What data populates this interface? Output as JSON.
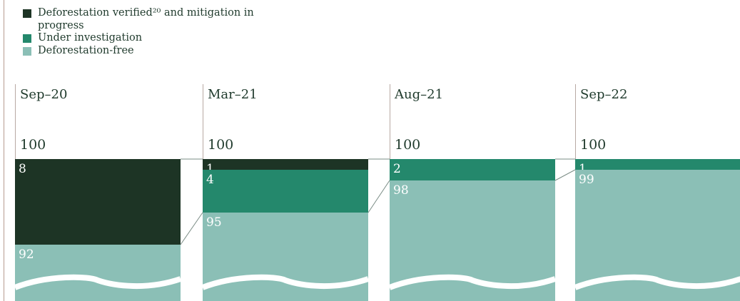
{
  "legend": {
    "items": [
      {
        "label": "Deforestation verified²⁰ and mitigation in progress",
        "color": "#1d3425"
      },
      {
        "label": "Under investigation",
        "color": "#24886c"
      },
      {
        "label": "Deforestation-free",
        "color": "#8bbfb6"
      }
    ]
  },
  "chart_data": {
    "type": "bar",
    "stacked": true,
    "broken_axis": true,
    "categories": [
      "Sep–20",
      "Mar–21",
      "Aug–21",
      "Sep–22"
    ],
    "totals": [
      "100",
      "100",
      "100",
      "100"
    ],
    "series": [
      {
        "name": "Deforestation verified²⁰ and mitigation in progress",
        "color": "#1d3425",
        "values": [
          8,
          1,
          0,
          0
        ]
      },
      {
        "name": "Under investigation",
        "color": "#24886c",
        "values": [
          0,
          4,
          2,
          1
        ]
      },
      {
        "name": "Deforestation-free",
        "color": "#8bbfb6",
        "values": [
          92,
          95,
          98,
          99
        ]
      }
    ]
  }
}
